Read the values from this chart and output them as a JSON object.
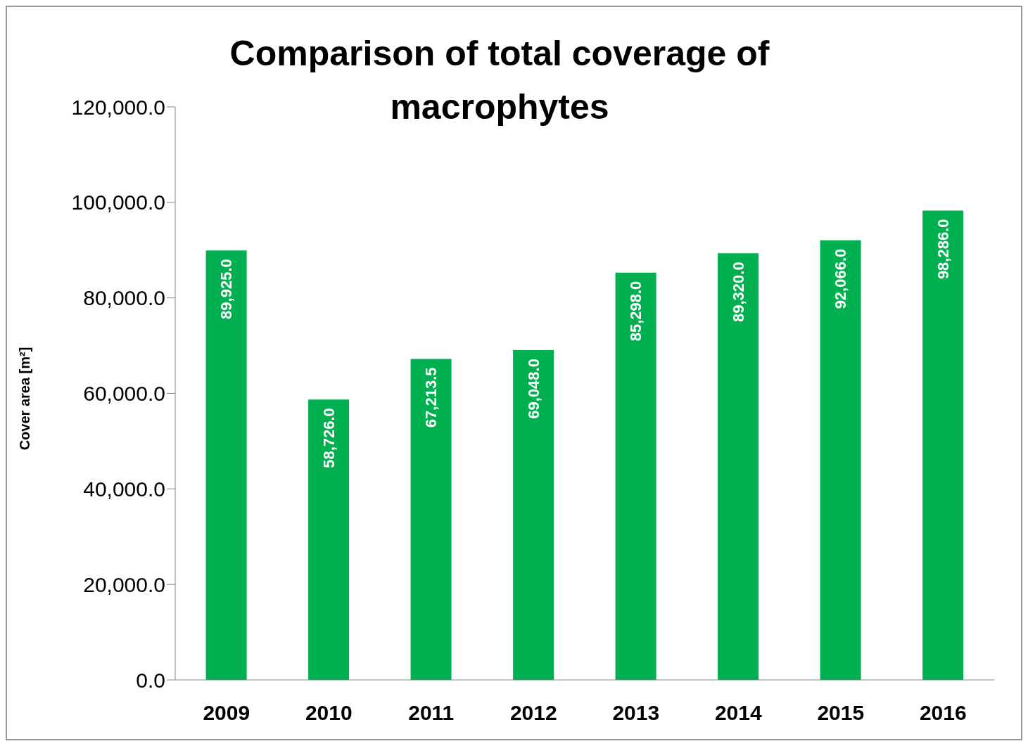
{
  "chart_data": {
    "type": "bar",
    "title": "Comparison of total coverage of macrophytes",
    "ylabel": "Cover area [m²]",
    "categories": [
      "2009",
      "2010",
      "2011",
      "2012",
      "2013",
      "2014",
      "2015",
      "2016"
    ],
    "values": [
      89925.0,
      58726.0,
      67213.5,
      69048.0,
      85298.0,
      89320.0,
      92066.0,
      98286.0
    ],
    "value_labels": [
      "89,925.0",
      "58,726.0",
      "67,213.5",
      "69,048.0",
      "85,298.0",
      "89,320.0",
      "92,066.0",
      "98,286.0"
    ],
    "color": "#00b050",
    "ylim": [
      0,
      120000
    ],
    "yticks": [
      {
        "value": 0,
        "label": "0.0"
      },
      {
        "value": 20000,
        "label": "20,000.0"
      },
      {
        "value": 40000,
        "label": "40,000.0"
      },
      {
        "value": 60000,
        "label": "60,000.0"
      },
      {
        "value": 80000,
        "label": "80,000.0"
      },
      {
        "value": 100000,
        "label": "100,000.0"
      },
      {
        "value": 120000,
        "label": "120,000.0"
      }
    ]
  }
}
